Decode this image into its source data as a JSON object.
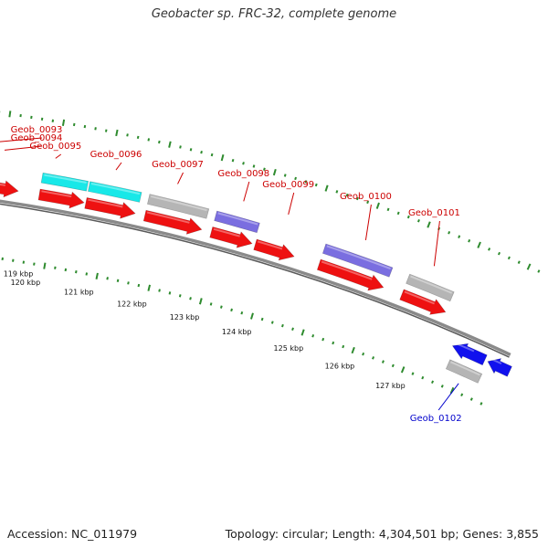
{
  "title": "Geobacter sp. FRC-32, complete genome",
  "footer": {
    "accession": "Accession: NC_011979",
    "summary": "Topology: circular; Length: 4,304,501 bp; Genes: 3,855"
  },
  "colors": {
    "backbone": "#8a8a8a",
    "ticks": "#2e8b2e",
    "gene_red": "#ee1111",
    "cds_cyan": "#18e8e8",
    "cds_gray": "#b5b5b5",
    "cds_purple": "#7a6ee0",
    "gene_blue": "#1111ee",
    "label_red": "#cc0000",
    "label_blue": "#0000cc"
  },
  "scale_labels": [
    "119 kbp",
    "120 kbp",
    "121 kbp",
    "122 kbp",
    "123 kbp",
    "124 kbp",
    "125 kbp",
    "126 kbp",
    "127 kbp"
  ],
  "gene_labels": [
    {
      "name": "Geob_0093",
      "color": "red"
    },
    {
      "name": "Geob_0094",
      "color": "red"
    },
    {
      "name": "Geob_0095",
      "color": "red"
    },
    {
      "name": "Geob_0096",
      "color": "red"
    },
    {
      "name": "Geob_0097",
      "color": "red"
    },
    {
      "name": "Geob_0098",
      "color": "red"
    },
    {
      "name": "Geob_0099",
      "color": "red"
    },
    {
      "name": "Geob_0100",
      "color": "red"
    },
    {
      "name": "Geob_0101",
      "color": "red"
    },
    {
      "name": "Geob_0102",
      "color": "blue"
    }
  ]
}
